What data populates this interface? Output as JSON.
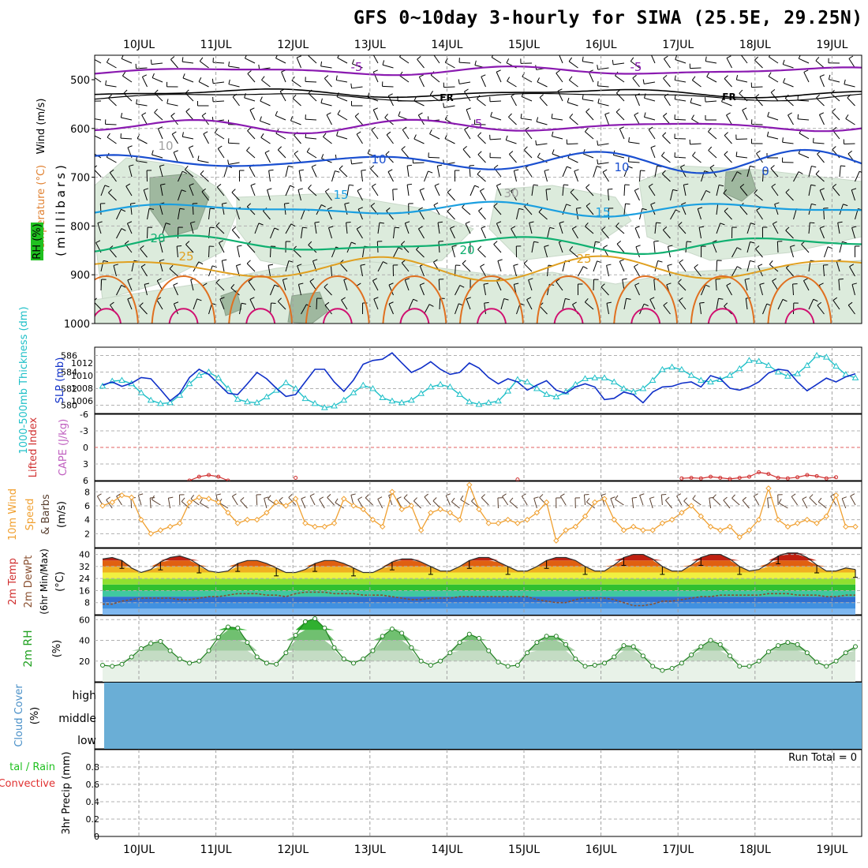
{
  "title": "GFS 0~10day 3-hourly for SIWA (25.5E, 29.25N)",
  "dates": [
    "10JUL",
    "11JUL",
    "12JUL",
    "13JUL",
    "14JUL",
    "15JUL",
    "16JUL",
    "17JUL",
    "18JUL",
    "19JUL"
  ],
  "run_total_label": "Run Total = 0",
  "colors": {
    "rh_light": "#dcebdc",
    "rh_mid": "#9fb89f",
    "rh_dark": "#6f8a70",
    "iso_m5": "#8a1ab0",
    "iso_fr": "#000000",
    "iso_10": "#1a4fd0",
    "iso_15": "#1a9fe0",
    "iso_20": "#10b070",
    "iso_25": "#e0a020",
    "iso_30": "#e07020",
    "iso_35": "#d01070",
    "slp": "#1030c8",
    "thickness": "#20c0c8",
    "lifted_index": "#d03030",
    "cape": "#c060c0",
    "wind_speed": "#f0a030",
    "barbs": "#5a4030",
    "rh2m": "#20a020",
    "cloud": "#6aaed6",
    "precip_total": "#20c020",
    "precip_conv": "#e03030"
  },
  "panels": {
    "upper": {
      "y_axis_title_wind": "Wind (m/s)",
      "y_axis_title_temp": "Temperature (°C)",
      "y_axis_title_rh": "RH (%)",
      "y_axis_title_pressure": "(millibars)",
      "y_ticks": [
        "500",
        "600",
        "700",
        "800",
        "900",
        "1000"
      ],
      "isotherm_labels": [
        "-5",
        "-5",
        "FR",
        "FR",
        "-5",
        "10",
        "10",
        "0",
        "15",
        "15",
        "20",
        "20",
        "25",
        "25",
        "10",
        "30"
      ]
    },
    "slp_thickness": {
      "ylabel_left": "1000-500mb Thickness (dm)",
      "ylabel_right": "SLP (mb)",
      "left_ticks": [
        "586",
        "584",
        "582",
        "580"
      ],
      "right_ticks": [
        "1012",
        "1010",
        "1008",
        "1006"
      ]
    },
    "stability": {
      "ylabel_left": "Lifted Index",
      "ylabel_right": "CAPE (J/kg)",
      "ticks": [
        "-6",
        "-3",
        "0",
        "3",
        "6"
      ]
    },
    "wind10m": {
      "ylabel_a": "10m Wind",
      "ylabel_b": "Speed",
      "ylabel_c": "& Barbs",
      "ylabel_units": "(m/s)",
      "ticks": [
        "8",
        "6",
        "4",
        "2"
      ]
    },
    "temp2m": {
      "ylabel_a": "2m Temp",
      "ylabel_b": "2m DewPt",
      "ylabel_c": "(6hr Min/Max)",
      "ylabel_units": "(°C)",
      "ticks": [
        "40",
        "32",
        "24",
        "16",
        "8"
      ]
    },
    "rh2m": {
      "ylabel": "2m RH",
      "ylabel_units": "(%)",
      "ticks": [
        "60",
        "40",
        "20"
      ]
    },
    "cloud": {
      "ylabel": "Cloud Cover",
      "ylabel_units": "(%)",
      "levels": [
        "high",
        "middle",
        "low"
      ]
    },
    "precip": {
      "ylabel_a": "tal / Rain",
      "ylabel_b": "Convective",
      "ylabel_c": "3hr Precip (mm)",
      "ticks": [
        "0.8",
        "0.6",
        "0.4",
        "0.2",
        "0"
      ]
    }
  },
  "chart_data": [
    {
      "type": "line",
      "panel": "slp_thickness",
      "x": [
        "09/12",
        "09/15",
        "09/18",
        "09/21",
        "10/00",
        "10/03",
        "10/06",
        "10/09",
        "10/12",
        "10/15",
        "10/18",
        "10/21",
        "11/00",
        "11/03",
        "11/06",
        "11/09",
        "11/12",
        "11/15",
        "11/18",
        "11/21",
        "12/00",
        "12/03",
        "12/06",
        "12/09",
        "12/12",
        "12/15",
        "12/18",
        "12/21",
        "13/00",
        "13/03",
        "13/06",
        "13/09",
        "13/12",
        "13/15",
        "13/18",
        "13/21",
        "14/00",
        "14/03",
        "14/06",
        "14/09",
        "14/12",
        "14/15",
        "14/18",
        "14/21",
        "15/00",
        "15/03",
        "15/06",
        "15/09",
        "15/12",
        "15/15",
        "15/18",
        "15/21",
        "16/00",
        "16/03",
        "16/06",
        "16/09",
        "16/12",
        "16/15",
        "16/18",
        "16/21",
        "17/00",
        "17/03",
        "17/06",
        "17/09",
        "17/12",
        "17/15",
        "17/18",
        "17/21",
        "18/00",
        "18/03",
        "18/06",
        "18/09",
        "18/12",
        "18/15",
        "18/18",
        "18/21",
        "19/00",
        "19/03",
        "19/06"
      ],
      "series": [
        {
          "name": "SLP (mb)",
          "axis": "right",
          "values": [
            1008.5,
            1009.0,
            1008.3,
            1008.8,
            1009.7,
            1009.5,
            1007.8,
            1006.0,
            1007.2,
            1009.7,
            1011.0,
            1010.2,
            1008.7,
            1007.2,
            1007.0,
            1008.7,
            1010.5,
            1009.5,
            1008.0,
            1006.7,
            1007.0,
            1009.0,
            1011.0,
            1011.0,
            1009.0,
            1007.5,
            1009.3,
            1011.8,
            1012.4,
            1012.6,
            1013.6,
            1012.0,
            1010.5,
            1011.2,
            1012.2,
            1011.0,
            1010.2,
            1010.5,
            1012.0,
            1011.2,
            1009.7,
            1008.7,
            1009.5,
            1009.0,
            1007.7,
            1008.5,
            1009.2,
            1007.7,
            1007.2,
            1008.2,
            1008.7,
            1008.2,
            1006.2,
            1006.4,
            1007.4,
            1007.0,
            1005.7,
            1007.4,
            1008.2,
            1008.3,
            1008.8,
            1009.0,
            1008.2,
            1010.0,
            1009.5,
            1008.0,
            1007.7,
            1008.2,
            1009.0,
            1010.4,
            1011.0,
            1010.8,
            1009.0,
            1007.6,
            1008.6,
            1009.6,
            1009.0,
            1009.8,
            1010.3
          ]
        },
        {
          "name": "1000-500mb Thickness (dm)",
          "axis": "left",
          "values": [
            582.3,
            582.9,
            583.0,
            582.6,
            581.5,
            580.6,
            580.2,
            580.3,
            581.2,
            582.6,
            583.6,
            584.0,
            583.3,
            582.0,
            580.7,
            580.4,
            580.3,
            581.0,
            581.8,
            582.7,
            582.0,
            580.8,
            580.2,
            579.7,
            579.9,
            580.6,
            581.5,
            582.4,
            582.0,
            580.9,
            580.5,
            580.3,
            580.6,
            581.4,
            582.2,
            582.5,
            582.2,
            581.3,
            580.4,
            580.1,
            580.3,
            580.5,
            581.7,
            583.1,
            582.8,
            582.0,
            581.3,
            581.0,
            581.6,
            582.5,
            583.2,
            583.3,
            583.3,
            582.8,
            582.0,
            581.6,
            582.0,
            583.0,
            584.3,
            584.6,
            584.3,
            583.6,
            583.0,
            582.8,
            583.1,
            583.6,
            584.4,
            585.4,
            585.3,
            584.8,
            584.0,
            583.5,
            583.8,
            584.8,
            586.0,
            585.8,
            584.7,
            583.7,
            583.3
          ]
        }
      ],
      "ylim_left": [
        579,
        587
      ],
      "ylim_right": [
        1004,
        1014.5
      ]
    },
    {
      "type": "line",
      "panel": "stability",
      "x": [
        "10/15",
        "10/18",
        "10/21",
        "11/00",
        "11/03",
        "12/00",
        "14/21",
        "17/00",
        "17/03",
        "17/06",
        "17/09",
        "17/12",
        "17/15",
        "17/18",
        "17/21",
        "18/00",
        "18/03",
        "18/06",
        "18/09",
        "18/12",
        "18/15",
        "18/18",
        "18/21",
        "19/00"
      ],
      "series": [
        {
          "name": "Lifted Index",
          "values": [
            6.0,
            5.3,
            5.0,
            5.3,
            6.0,
            5.5,
            5.8,
            5.6,
            5.5,
            5.6,
            5.3,
            5.5,
            5.7,
            5.5,
            5.3,
            4.5,
            4.8,
            5.5,
            5.6,
            5.4,
            5.0,
            5.2,
            5.6,
            5.4
          ]
        }
      ],
      "ylim": [
        -6,
        6
      ],
      "inverted": true
    },
    {
      "type": "line",
      "panel": "wind10m",
      "x": [
        "09/12",
        "09/15",
        "09/18",
        "09/21",
        "10/00",
        "10/03",
        "10/06",
        "10/09",
        "10/12",
        "10/15",
        "10/18",
        "10/21",
        "11/00",
        "11/03",
        "11/06",
        "11/09",
        "11/12",
        "11/15",
        "11/18",
        "11/21",
        "12/00",
        "12/03",
        "12/06",
        "12/09",
        "12/12",
        "12/15",
        "12/18",
        "12/21",
        "13/00",
        "13/03",
        "13/06",
        "13/09",
        "13/12",
        "13/15",
        "13/18",
        "13/21",
        "14/00",
        "14/03",
        "14/06",
        "14/09",
        "14/12",
        "14/15",
        "14/18",
        "14/21",
        "15/00",
        "15/03",
        "15/06",
        "15/09",
        "15/12",
        "15/15",
        "15/18",
        "15/21",
        "16/00",
        "16/03",
        "16/06",
        "16/09",
        "16/12",
        "16/15",
        "16/18",
        "16/21",
        "17/00",
        "17/03",
        "17/06",
        "17/09",
        "17/12",
        "17/15",
        "17/18",
        "17/21",
        "18/00",
        "18/03",
        "18/06",
        "18/09",
        "18/12",
        "18/15",
        "18/18",
        "18/21",
        "19/00",
        "19/03",
        "19/06"
      ],
      "series": [
        {
          "name": "10m Wind Speed (m/s)",
          "values": [
            6.0,
            6.5,
            7.5,
            7.2,
            4.0,
            2.0,
            2.5,
            3.0,
            3.5,
            6.5,
            7.2,
            7.0,
            6.5,
            5.0,
            3.5,
            4.0,
            4.0,
            5.0,
            6.5,
            6.0,
            7.0,
            3.5,
            3.0,
            3.0,
            3.5,
            7.0,
            6.0,
            5.5,
            4.0,
            3.0,
            8.0,
            5.5,
            6.0,
            2.5,
            5.0,
            5.5,
            5.0,
            4.0,
            9.0,
            5.5,
            3.5,
            3.5,
            4.0,
            3.5,
            4.0,
            5.0,
            6.5,
            1.0,
            2.5,
            3.0,
            4.5,
            6.5,
            7.0,
            4.0,
            2.5,
            3.0,
            2.5,
            2.5,
            3.5,
            4.0,
            5.0,
            6.0,
            4.5,
            3.0,
            2.5,
            3.0,
            1.5,
            2.5,
            4.0,
            8.5,
            4.0,
            3.0,
            3.5,
            4.0,
            3.5,
            4.5,
            7.5,
            3.0,
            3.0
          ]
        }
      ],
      "ylim": [
        0,
        9.5
      ]
    },
    {
      "type": "area",
      "panel": "temp2m",
      "x": [
        "09/12",
        "09/15",
        "09/18",
        "09/21",
        "10/00",
        "10/03",
        "10/06",
        "10/09",
        "10/12",
        "10/15",
        "10/18",
        "10/21",
        "11/00",
        "11/03",
        "11/06",
        "11/09",
        "11/12",
        "11/15",
        "11/18",
        "11/21",
        "12/00",
        "12/03",
        "12/06",
        "12/09",
        "12/12",
        "12/15",
        "12/18",
        "12/21",
        "13/00",
        "13/03",
        "13/06",
        "13/09",
        "13/12",
        "13/15",
        "13/18",
        "13/21",
        "14/00",
        "14/03",
        "14/06",
        "14/09",
        "14/12",
        "14/15",
        "14/18",
        "14/21",
        "15/00",
        "15/03",
        "15/06",
        "15/09",
        "15/12",
        "15/15",
        "15/18",
        "15/21",
        "16/00",
        "16/03",
        "16/06",
        "16/09",
        "16/12",
        "16/15",
        "16/18",
        "16/21",
        "17/00",
        "17/03",
        "17/06",
        "17/09",
        "17/12",
        "17/15",
        "17/18",
        "17/21",
        "18/00",
        "18/03",
        "18/06",
        "18/09",
        "18/12",
        "18/15",
        "18/18",
        "18/21",
        "19/00",
        "19/03",
        "19/06"
      ],
      "series": [
        {
          "name": "2m Temp (°C)",
          "values": [
            37,
            38,
            36,
            31,
            28,
            30,
            35,
            38,
            39,
            37,
            33,
            29,
            28,
            29,
            34,
            36,
            36,
            34,
            31,
            28,
            28,
            30,
            34,
            36,
            36,
            34,
            31,
            28,
            28,
            31,
            35,
            37,
            37,
            35,
            32,
            29,
            29,
            32,
            36,
            38,
            38,
            35,
            32,
            29,
            29,
            32,
            36,
            38,
            38,
            36,
            32,
            29,
            29,
            33,
            38,
            40,
            40,
            37,
            32,
            29,
            29,
            33,
            38,
            40,
            40,
            37,
            32,
            29,
            30,
            34,
            39,
            41,
            41,
            38,
            33,
            29,
            29,
            31,
            30
          ]
        },
        {
          "name": "2m DewPt (°C)",
          "values": [
            7,
            7,
            9,
            10,
            11,
            11,
            11,
            11,
            10,
            10,
            11,
            12,
            12,
            13,
            14,
            14,
            14,
            13,
            13,
            12,
            14,
            15,
            15,
            15,
            14,
            14,
            14,
            13,
            13,
            13,
            12,
            11,
            10,
            10,
            11,
            11,
            11,
            12,
            12,
            12,
            12,
            12,
            12,
            12,
            12,
            10,
            9,
            8,
            8,
            10,
            11,
            11,
            11,
            10,
            8,
            6,
            6,
            7,
            9,
            9,
            10,
            11,
            12,
            12,
            13,
            13,
            13,
            13,
            13,
            14,
            14,
            14,
            13,
            13,
            13,
            12,
            12,
            13,
            13
          ]
        }
      ],
      "ylim": [
        0,
        44
      ]
    },
    {
      "type": "area",
      "panel": "rh2m",
      "x": [
        "09/12",
        "09/15",
        "09/18",
        "09/21",
        "10/00",
        "10/03",
        "10/06",
        "10/09",
        "10/12",
        "10/15",
        "10/18",
        "10/21",
        "11/00",
        "11/03",
        "11/06",
        "11/09",
        "11/12",
        "11/15",
        "11/18",
        "11/21",
        "12/00",
        "12/03",
        "12/06",
        "12/09",
        "12/12",
        "12/15",
        "12/18",
        "12/21",
        "13/00",
        "13/03",
        "13/06",
        "13/09",
        "13/12",
        "13/15",
        "13/18",
        "13/21",
        "14/00",
        "14/03",
        "14/06",
        "14/09",
        "14/12",
        "14/15",
        "14/18",
        "14/21",
        "15/00",
        "15/03",
        "15/06",
        "15/09",
        "15/12",
        "15/15",
        "15/18",
        "15/21",
        "16/00",
        "16/03",
        "16/06",
        "16/09",
        "16/12",
        "16/15",
        "16/18",
        "16/21",
        "17/00",
        "17/03",
        "17/06",
        "17/09",
        "17/12",
        "17/15",
        "17/18",
        "17/21",
        "18/00",
        "18/03",
        "18/06",
        "18/09",
        "18/12",
        "18/15",
        "18/18",
        "18/21",
        "19/00",
        "19/03",
        "19/06"
      ],
      "series": [
        {
          "name": "2m RH (%)",
          "values": [
            16,
            15,
            17,
            24,
            32,
            37,
            39,
            30,
            22,
            18,
            20,
            30,
            43,
            53,
            52,
            38,
            24,
            18,
            17,
            28,
            45,
            58,
            61,
            52,
            33,
            22,
            18,
            22,
            30,
            44,
            51,
            47,
            33,
            20,
            16,
            20,
            28,
            38,
            46,
            42,
            30,
            19,
            15,
            16,
            28,
            38,
            44,
            44,
            36,
            22,
            15,
            16,
            18,
            24,
            35,
            34,
            25,
            15,
            11,
            13,
            18,
            26,
            34,
            40,
            36,
            25,
            15,
            15,
            20,
            29,
            35,
            38,
            36,
            28,
            19,
            15,
            20,
            28,
            34
          ]
        }
      ],
      "ylim": [
        0,
        64
      ]
    },
    {
      "type": "bar",
      "panel": "precip",
      "categories": [],
      "values": [],
      "ylim": [
        0,
        1
      ]
    }
  ]
}
